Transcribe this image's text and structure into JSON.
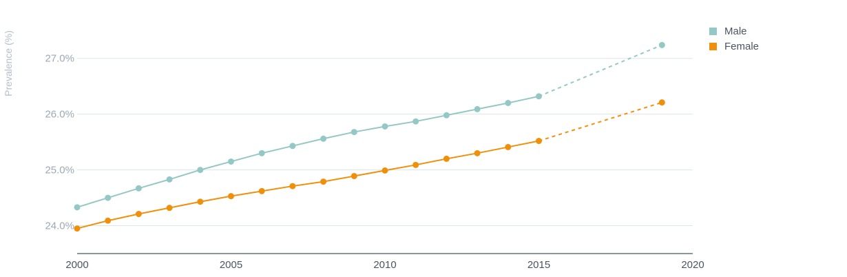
{
  "chart_data": {
    "type": "line",
    "title": "",
    "xlabel": "",
    "ylabel": "Prevalence (%)",
    "xlim": [
      2000,
      2020
    ],
    "ylim": [
      23.5,
      27.8
    ],
    "x_ticks": [
      2000,
      2005,
      2010,
      2015,
      2020
    ],
    "x_tick_labels": [
      "2000",
      "2005",
      "2010",
      "2015",
      "2020"
    ],
    "y_ticks": [
      24.0,
      25.0,
      26.0,
      27.0
    ],
    "y_tick_labels": [
      "24.0%",
      "25.0%",
      "26.0%",
      "27.0%"
    ],
    "grid": true,
    "legend_position": "top-right",
    "series": [
      {
        "name": "Male",
        "color": "#93c8c6",
        "x": [
          2000,
          2001,
          2002,
          2003,
          2004,
          2005,
          2006,
          2007,
          2008,
          2009,
          2010,
          2011,
          2012,
          2013,
          2014,
          2015
        ],
        "values": [
          24.33,
          24.5,
          24.67,
          24.83,
          25.0,
          25.15,
          25.3,
          25.43,
          25.56,
          25.68,
          25.78,
          25.87,
          25.98,
          26.09,
          26.2,
          26.32
        ],
        "projection": {
          "x": [
            2015,
            2019
          ],
          "values": [
            26.32,
            27.24
          ]
        }
      },
      {
        "name": "Female",
        "color": "#f0900a",
        "x": [
          2000,
          2001,
          2002,
          2003,
          2004,
          2005,
          2006,
          2007,
          2008,
          2009,
          2010,
          2011,
          2012,
          2013,
          2014,
          2015
        ],
        "values": [
          23.95,
          24.09,
          24.21,
          24.32,
          24.43,
          24.53,
          24.62,
          24.71,
          24.79,
          24.89,
          24.99,
          25.09,
          25.2,
          25.3,
          25.41,
          25.52
        ],
        "projection": {
          "x": [
            2015,
            2019
          ],
          "values": [
            25.52,
            26.21
          ]
        }
      }
    ]
  }
}
